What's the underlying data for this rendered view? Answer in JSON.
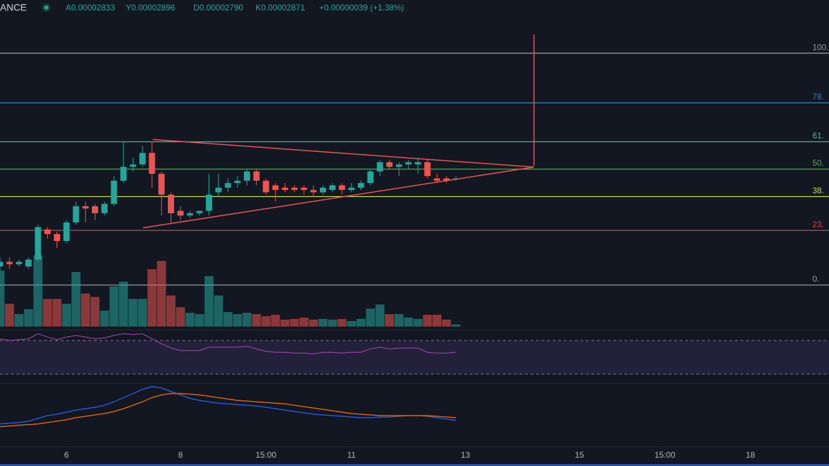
{
  "chart_data": {
    "type": "candlestick",
    "header": {
      "exchange": "ANCE",
      "open": "A0.00002833",
      "high": "Y0.00002896",
      "low": "D0.00002790",
      "close": "K0.00002871",
      "change": "+0.00000039 (+1.38%)"
    },
    "up_color": "#26a69a",
    "down_color": "#ef5350",
    "categories": [
      null,
      null,
      null,
      null,
      null,
      null,
      null,
      "6",
      null,
      null,
      null,
      null,
      null,
      null,
      null,
      null,
      null,
      null,
      null,
      "8",
      null,
      null,
      null,
      null,
      null,
      null,
      null,
      null,
      "15:00",
      null,
      null,
      null,
      null,
      null,
      null,
      null,
      null,
      "11",
      null,
      null,
      null,
      null,
      null,
      null,
      null,
      null,
      null,
      null,
      null,
      "13",
      null,
      null,
      null,
      null,
      null,
      null,
      null,
      null,
      null,
      null,
      null,
      "15",
      null,
      null,
      null,
      null,
      null,
      null,
      null,
      null,
      "15:00",
      null,
      null,
      null,
      null,
      null,
      null,
      null,
      null,
      "18",
      null,
      null,
      null,
      null,
      null,
      null,
      null,
      null
    ],
    "open": [
      8,
      10,
      9,
      8,
      11,
      24,
      22,
      19,
      27,
      34,
      34,
      31,
      35,
      45,
      51,
      52,
      57,
      48,
      39,
      32,
      30,
      31,
      32,
      40,
      42,
      44,
      45,
      49,
      45,
      43,
      42,
      42,
      42,
      41,
      40,
      41,
      43,
      41,
      42,
      44,
      49,
      53,
      51,
      52,
      52,
      53,
      46,
      46,
      46,
      null,
      null,
      null,
      null,
      null,
      null,
      null,
      null,
      null,
      null,
      null,
      null,
      null,
      null,
      null,
      null,
      null,
      null,
      null,
      null,
      null,
      null,
      null,
      null,
      null,
      null,
      null,
      null,
      null,
      null,
      null,
      null,
      null,
      null,
      null,
      null,
      null,
      null,
      null
    ],
    "high": [
      12,
      12,
      11,
      12,
      26,
      25,
      23,
      28,
      36,
      36,
      35,
      36,
      47,
      62,
      55,
      60,
      62,
      49,
      40,
      34,
      32,
      32,
      48,
      48,
      46,
      47,
      50,
      50,
      46,
      44,
      44,
      43,
      43,
      43,
      43,
      44,
      44,
      44,
      45,
      50,
      54,
      54,
      53,
      54,
      55,
      54,
      48,
      47,
      47,
      null,
      null,
      null,
      null,
      null,
      null,
      null,
      null,
      null,
      null,
      null,
      null,
      null,
      null,
      null,
      null,
      null,
      null,
      null,
      null,
      null,
      null,
      null,
      null,
      null,
      null,
      null,
      null,
      null,
      null,
      null,
      null,
      null,
      null,
      null,
      null,
      null,
      null,
      null
    ],
    "low": [
      6,
      7,
      8,
      7,
      10,
      20,
      16,
      18,
      26,
      27,
      28,
      30,
      34,
      44,
      49,
      51,
      42,
      30,
      27,
      28,
      29,
      30,
      30,
      38,
      40,
      42,
      43,
      43,
      39,
      36,
      40,
      40,
      39,
      38,
      39,
      40,
      39,
      40,
      41,
      43,
      47,
      50,
      47,
      50,
      48,
      46,
      44,
      44,
      45,
      null,
      null,
      null,
      null,
      null,
      null,
      null,
      null,
      null,
      null,
      null,
      null,
      null,
      null,
      null,
      null,
      null,
      null,
      null,
      null,
      null,
      null,
      null,
      null,
      null,
      null,
      null,
      null,
      null,
      null,
      null,
      null,
      null,
      null,
      null,
      null,
      null,
      null,
      null
    ],
    "close": [
      10,
      9,
      10,
      11,
      25,
      22,
      19,
      27,
      34,
      33,
      31,
      35,
      45,
      51,
      52,
      57,
      48,
      39,
      31,
      30,
      31,
      32,
      39,
      42,
      44,
      45,
      49,
      45,
      40,
      41,
      41,
      41,
      41,
      40,
      42,
      43,
      41,
      42,
      44,
      49,
      53,
      51,
      52,
      53,
      53,
      47,
      45,
      45,
      46,
      null,
      null,
      null,
      null,
      null,
      null,
      null,
      null,
      null,
      null,
      null,
      null,
      null,
      null,
      null,
      null,
      null,
      null,
      null,
      null,
      null,
      null,
      null,
      null,
      null,
      null,
      null,
      null,
      null,
      null,
      null,
      null,
      null,
      null,
      null,
      null,
      null,
      null,
      null
    ],
    "ylim": [
      -18.5,
      117
    ],
    "levels": [
      {
        "value": 100,
        "label": "100.",
        "color": "#9598a1"
      },
      {
        "value": 78.6,
        "label": "78.",
        "color": "#2e86c1"
      },
      {
        "value": 61.8,
        "label": "61.",
        "color": "#3fbf8f"
      },
      {
        "value": 50,
        "label": "50.",
        "color": "#4caf50"
      },
      {
        "value": 38.2,
        "label": "38.",
        "color": "#c6dc3b"
      },
      {
        "value": 23.6,
        "label": "23.",
        "color": "#e53935"
      },
      {
        "value": 0,
        "label": "0.",
        "color": "#9598a1"
      }
    ],
    "volume": {
      "ylim": [
        0,
        100
      ],
      "values": [
        81,
        33,
        18,
        25,
        103,
        40,
        40,
        33,
        79,
        48,
        43,
        23,
        58,
        65,
        40,
        40,
        83,
        95,
        45,
        28,
        20,
        18,
        73,
        45,
        21,
        18,
        20,
        18,
        15,
        17,
        10,
        11,
        13,
        10,
        11,
        10,
        11,
        8,
        11,
        26,
        32,
        18,
        18,
        13,
        11,
        17,
        17,
        10,
        3,
        null,
        null,
        null,
        null,
        null,
        null,
        null,
        null,
        null,
        null,
        null,
        null,
        null,
        null,
        null,
        null,
        null,
        null,
        null,
        null,
        null,
        null,
        null,
        null,
        null,
        null,
        null,
        null,
        null,
        null,
        null,
        null,
        null,
        null,
        null,
        null,
        null,
        null,
        null
      ]
    },
    "rsi": {
      "ylim": [
        20,
        80
      ],
      "band": [
        70,
        30
      ],
      "color": "#ab47bc",
      "values": [
        72,
        70,
        71,
        72,
        78,
        74,
        71,
        74,
        76,
        74,
        72,
        73,
        76,
        78,
        77,
        78,
        72,
        66,
        61,
        58,
        58,
        58,
        62,
        62,
        62,
        62,
        63,
        60,
        57,
        56,
        56,
        55,
        55,
        54,
        56,
        56,
        55,
        56,
        56,
        60,
        62,
        60,
        61,
        61,
        61,
        56,
        55,
        55,
        56,
        null,
        null,
        null,
        null,
        null,
        null,
        null,
        null,
        null,
        null,
        null,
        null,
        null,
        null,
        null,
        null,
        null,
        null,
        null,
        null,
        null,
        null,
        null,
        null,
        null,
        null,
        null,
        null,
        null,
        null,
        null,
        null,
        null,
        null,
        null,
        null,
        null,
        null,
        null
      ]
    },
    "macd": {
      "ylim": [
        -33,
        66
      ],
      "series": [
        {
          "color": "#2962ff",
          "values": [
            8,
            9,
            10,
            12,
            16,
            20,
            22,
            25,
            28,
            30,
            32,
            35,
            40,
            46,
            52,
            58,
            62,
            60,
            55,
            50,
            45,
            42,
            40,
            38,
            37,
            36,
            35,
            34,
            32,
            30,
            28,
            26,
            24,
            22,
            21,
            20,
            19,
            18,
            17,
            17,
            18,
            18,
            19,
            20,
            20,
            19,
            17,
            15,
            13,
            null,
            null,
            null,
            null,
            null,
            null,
            null,
            null,
            null,
            null,
            null,
            null,
            null,
            null,
            null,
            null,
            null,
            null,
            null,
            null,
            null,
            null,
            null,
            null,
            null,
            null,
            null,
            null,
            null,
            null,
            null,
            null,
            null,
            null,
            null,
            null,
            null,
            null,
            null
          ]
        },
        {
          "color": "#ff6d00",
          "values": [
            4,
            5,
            6,
            7,
            8,
            10,
            12,
            14,
            17,
            19,
            21,
            23,
            26,
            30,
            35,
            40,
            46,
            50,
            52,
            52,
            51,
            50,
            48,
            46,
            44,
            42,
            41,
            40,
            39,
            38,
            37,
            35,
            33,
            31,
            29,
            27,
            25,
            23,
            22,
            21,
            20,
            20,
            20,
            20,
            20,
            20,
            19,
            18,
            17,
            null,
            null,
            null,
            null,
            null,
            null,
            null,
            null,
            null,
            null,
            null,
            null,
            null,
            null,
            null,
            null,
            null,
            null,
            null,
            null,
            null,
            null,
            null,
            null,
            null,
            null,
            null,
            null,
            null,
            null,
            null,
            null,
            null,
            null,
            null,
            null,
            null,
            null,
            null
          ]
        }
      ]
    }
  }
}
